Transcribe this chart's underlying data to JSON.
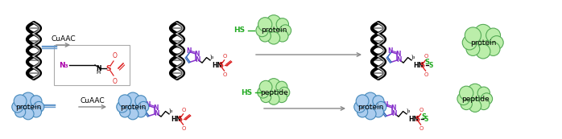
{
  "fig_width": 6.98,
  "fig_height": 1.73,
  "dpi": 100,
  "bg_color": "#ffffff",
  "dna_color": "#000000",
  "alkyne_color": "#6699cc",
  "triazole_n_color": "#8833cc",
  "triazole_c_color": "#3366bb",
  "sulfonyl_color": "#dd2222",
  "hs_color": "#22aa22",
  "s_link_color": "#22aa22",
  "protein_green_fill": "#bbeeaa",
  "protein_green_edge": "#55aa55",
  "protein_blue_fill": "#aaccee",
  "protein_blue_edge": "#4488bb",
  "arrow_color": "#888888",
  "box_edge_color": "#aaaaaa",
  "azide_color": "#aa00aa",
  "text_cuaac": "CuAAC",
  "text_protein": "protein",
  "text_peptide": "peptide",
  "text_hs": "HS",
  "chain_color": "#000000",
  "hn_color": "#000000"
}
